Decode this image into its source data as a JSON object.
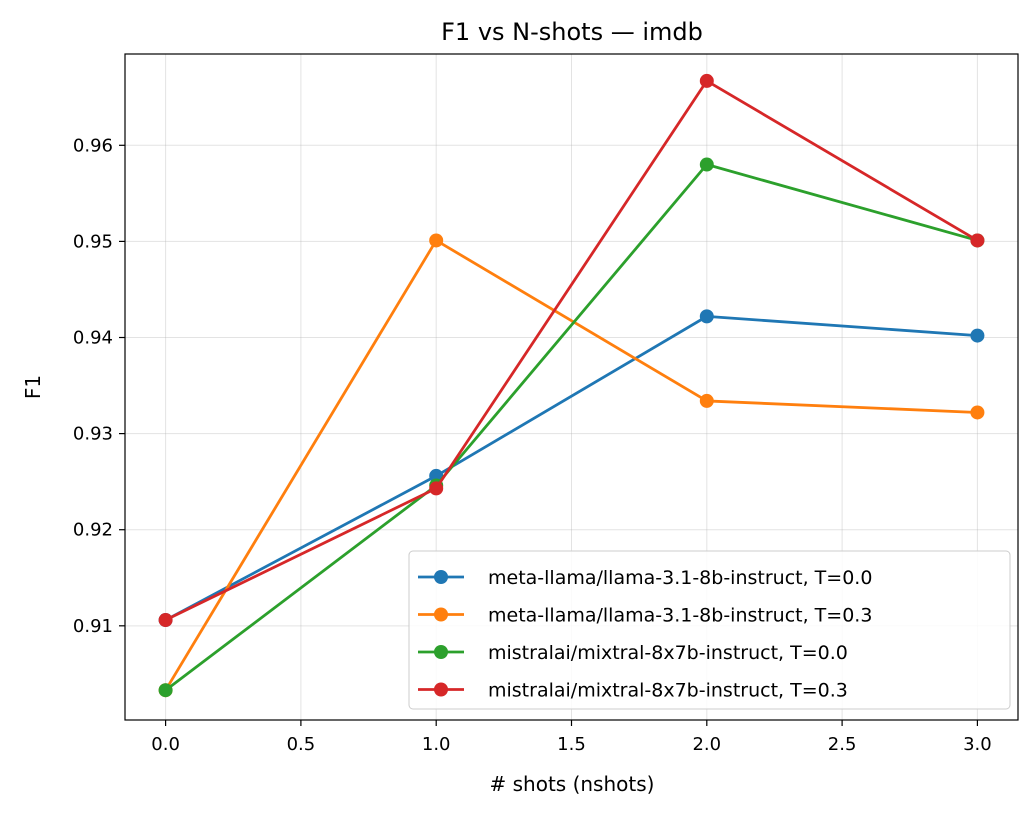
{
  "chart_data": {
    "type": "line",
    "title": "F1 vs N-shots — imdb",
    "xlabel": "# shots (nshots)",
    "ylabel": "F1",
    "xlim": [
      -0.15,
      3.15
    ],
    "ylim": [
      0.9002,
      0.9695
    ],
    "xticks": [
      0.0,
      0.5,
      1.0,
      1.5,
      2.0,
      2.5,
      3.0
    ],
    "xtick_labels": [
      "0.0",
      "0.5",
      "1.0",
      "1.5",
      "2.0",
      "2.5",
      "3.0"
    ],
    "yticks": [
      0.91,
      0.92,
      0.93,
      0.94,
      0.95,
      0.96
    ],
    "ytick_labels": [
      "0.91",
      "0.92",
      "0.93",
      "0.94",
      "0.95",
      "0.96"
    ],
    "grid": true,
    "legend_position": "lower-right",
    "x": [
      0,
      1,
      2,
      3
    ],
    "series": [
      {
        "name": "meta-llama/llama-3.1-8b-instruct, T=0.0",
        "color": "#1f77b4",
        "values": [
          0.9106,
          0.9256,
          0.9422,
          0.9402
        ]
      },
      {
        "name": "meta-llama/llama-3.1-8b-instruct, T=0.3",
        "color": "#ff7f0e",
        "values": [
          0.9033,
          0.9501,
          0.9334,
          0.9322
        ]
      },
      {
        "name": "mistralai/mixtral-8x7b-instruct, T=0.0",
        "color": "#2ca02c",
        "values": [
          0.9033,
          0.9246,
          0.958,
          0.9501
        ]
      },
      {
        "name": "mistralai/mixtral-8x7b-instruct, T=0.3",
        "color": "#d62728",
        "values": [
          0.9106,
          0.9243,
          0.9667,
          0.9501
        ]
      }
    ]
  }
}
